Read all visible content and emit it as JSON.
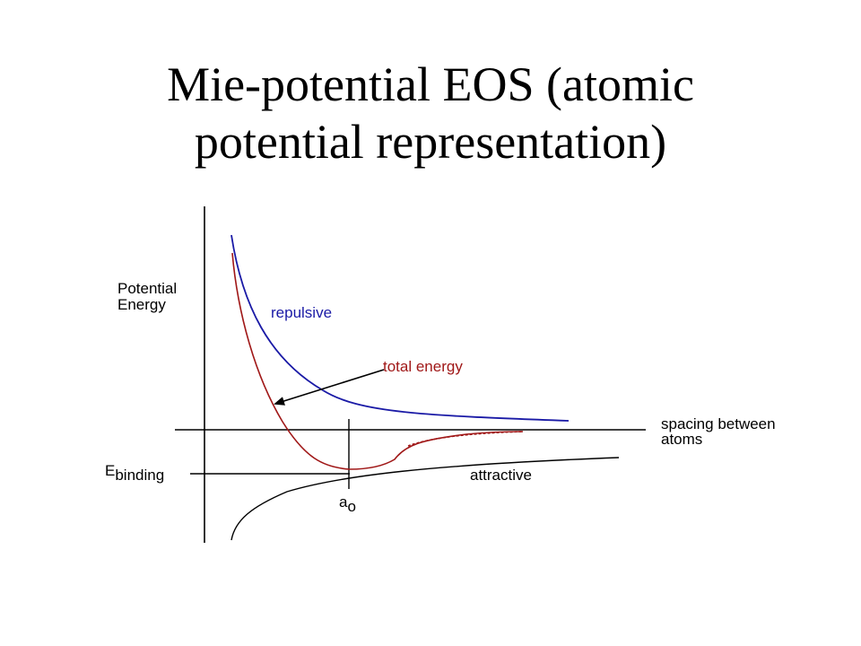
{
  "slide": {
    "title_line1": "Mie-potential EOS (atomic",
    "title_line2": "potential representation)"
  },
  "diagram": {
    "y_axis_label_line1": "Potential",
    "y_axis_label_line2": "Energy",
    "x_axis_label_line1": "spacing between",
    "x_axis_label_line2": "atoms",
    "repulsive_label": "repulsive",
    "total_energy_label": "total energy",
    "attractive_label": "attractive",
    "binding_label_main": "E",
    "binding_label_sub": "binding",
    "equilibrium_label_main": "a",
    "equilibrium_label_sub": "o",
    "colors": {
      "repulsive": "#1a1aa6",
      "total_energy": "#a01818",
      "attractive": "#000000",
      "axes": "#000000"
    }
  }
}
